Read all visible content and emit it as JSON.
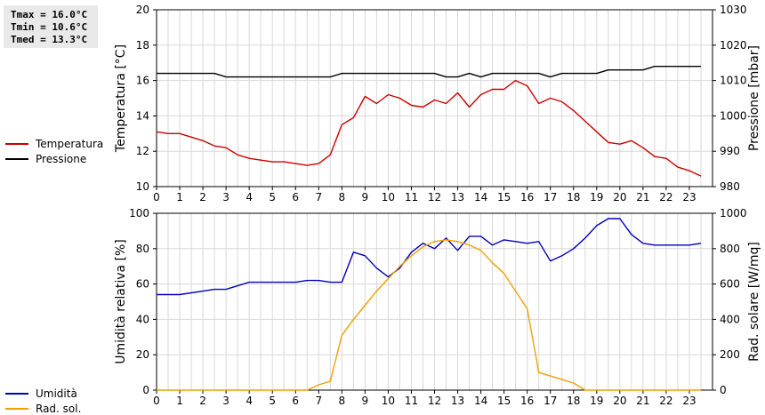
{
  "stats": {
    "tmax": "Tmax = 16.0°C",
    "tmin": "Tmin = 10.6°C",
    "tmed": "Tmed = 13.3°C"
  },
  "legend_top": [
    {
      "label": "Temperatura",
      "color": "#cc0000"
    },
    {
      "label": "Pressione",
      "color": "#000000"
    }
  ],
  "legend_bottom": [
    {
      "label": "Umidità",
      "color": "#0000bb"
    },
    {
      "label": "Rad. sol.",
      "color": "#f0a000"
    }
  ],
  "colors": {
    "temperature": "#cc0000",
    "pressure": "#000000",
    "humidity": "#0000bb",
    "radiation": "#f0a000",
    "grid": "#d8d8d8"
  },
  "chart_data": [
    {
      "type": "line",
      "xlim": [
        0,
        24
      ],
      "x_ticks": [
        "0",
        "1",
        "2",
        "3",
        "4",
        "5",
        "6",
        "7",
        "8",
        "9",
        "10",
        "11",
        "12",
        "13",
        "14",
        "15",
        "16",
        "17",
        "18",
        "19",
        "20",
        "21",
        "22",
        "23"
      ],
      "ylabel": "Temperatura [°C]",
      "ylim": [
        10,
        20
      ],
      "y_ticks": [
        "10",
        "12",
        "14",
        "16",
        "18",
        "20"
      ],
      "y2label": "Pressione [mbar]",
      "y2lim": [
        980,
        1030
      ],
      "y2_ticks": [
        "980",
        "990",
        "1000",
        "1010",
        "1020",
        "1030"
      ],
      "series": [
        {
          "name": "Temperatura",
          "axis": "left",
          "color": "#cc0000",
          "x": [
            0,
            0.5,
            1,
            1.5,
            2,
            2.5,
            3,
            3.5,
            4,
            4.5,
            5,
            5.5,
            6,
            6.5,
            7,
            7.5,
            8,
            8.5,
            9,
            9.5,
            10,
            10.5,
            11,
            11.5,
            12,
            12.5,
            13,
            13.5,
            14,
            14.5,
            15,
            15.5,
            16,
            16.5,
            17,
            17.5,
            18,
            18.5,
            19,
            19.5,
            20,
            20.5,
            21,
            21.5,
            22,
            22.5,
            23,
            23.5
          ],
          "y": [
            13.1,
            13.0,
            13.0,
            12.8,
            12.6,
            12.3,
            12.2,
            11.8,
            11.6,
            11.5,
            11.4,
            11.4,
            11.3,
            11.2,
            11.3,
            11.8,
            13.5,
            13.9,
            15.1,
            14.7,
            15.2,
            15.0,
            14.6,
            14.5,
            14.9,
            14.7,
            15.3,
            14.5,
            15.2,
            15.5,
            15.5,
            16.0,
            15.7,
            14.7,
            15.0,
            14.8,
            14.3,
            13.7,
            13.1,
            12.5,
            12.4,
            12.6,
            12.2,
            11.7,
            11.6,
            11.1,
            10.9,
            10.6
          ]
        },
        {
          "name": "Pressione",
          "axis": "right",
          "color": "#000000",
          "x": [
            0,
            2.5,
            3,
            7.5,
            8,
            12,
            12.5,
            13,
            13.5,
            14,
            14.5,
            16.5,
            17,
            17.5,
            19,
            19.5,
            20.5,
            21,
            21.5,
            23.5
          ],
          "y": [
            1012,
            1012,
            1011,
            1011,
            1012,
            1012,
            1011,
            1011,
            1012,
            1011,
            1012,
            1012,
            1011,
            1012,
            1012,
            1013,
            1013,
            1013,
            1014,
            1014
          ]
        }
      ]
    },
    {
      "type": "line",
      "xlim": [
        0,
        24
      ],
      "x_ticks": [
        "0",
        "1",
        "2",
        "3",
        "4",
        "5",
        "6",
        "7",
        "8",
        "9",
        "10",
        "11",
        "12",
        "13",
        "14",
        "15",
        "16",
        "17",
        "18",
        "19",
        "20",
        "21",
        "22",
        "23"
      ],
      "ylabel": "Umidità relativa [%]",
      "ylim": [
        0,
        100
      ],
      "y_ticks": [
        "0",
        "20",
        "40",
        "60",
        "80",
        "100"
      ],
      "y2label": "Rad. solare [W/mq]",
      "y2lim": [
        0,
        1000
      ],
      "y2_ticks": [
        "0",
        "200",
        "400",
        "600",
        "800",
        "1000"
      ],
      "series": [
        {
          "name": "Umidità",
          "axis": "left",
          "color": "#0000bb",
          "x": [
            0,
            1,
            2,
            2.5,
            3,
            4,
            5,
            6,
            6.5,
            7,
            7.5,
            8,
            8.5,
            9,
            9.5,
            10,
            10.5,
            11,
            11.5,
            12,
            12.5,
            13,
            13.5,
            14,
            14.5,
            15,
            15.5,
            16,
            16.5,
            17,
            17.5,
            18,
            18.5,
            19,
            19.5,
            20,
            20.5,
            21,
            21.5,
            22,
            22.5,
            23,
            23.5
          ],
          "y": [
            54,
            54,
            56,
            57,
            57,
            61,
            61,
            61,
            62,
            62,
            61,
            61,
            78,
            76,
            69,
            64,
            69,
            78,
            83,
            80,
            86,
            79,
            87,
            87,
            82,
            85,
            84,
            83,
            84,
            73,
            76,
            80,
            86,
            93,
            97,
            97,
            88,
            83,
            82,
            82,
            82,
            82,
            83
          ]
        },
        {
          "name": "Rad. sol.",
          "axis": "right",
          "color": "#f0a000",
          "x": [
            0,
            6.5,
            7,
            7.5,
            8,
            8.5,
            9,
            9.5,
            10,
            10.5,
            11,
            11.5,
            12,
            12.5,
            13,
            13.5,
            14,
            14.5,
            15,
            15.5,
            16,
            16.5,
            17,
            17.5,
            18,
            18.5,
            19,
            23.5
          ],
          "y": [
            0,
            0,
            30,
            50,
            310,
            400,
            480,
            560,
            630,
            700,
            760,
            810,
            840,
            850,
            840,
            820,
            790,
            720,
            660,
            560,
            460,
            100,
            80,
            60,
            40,
            0,
            0,
            0
          ]
        }
      ]
    }
  ]
}
